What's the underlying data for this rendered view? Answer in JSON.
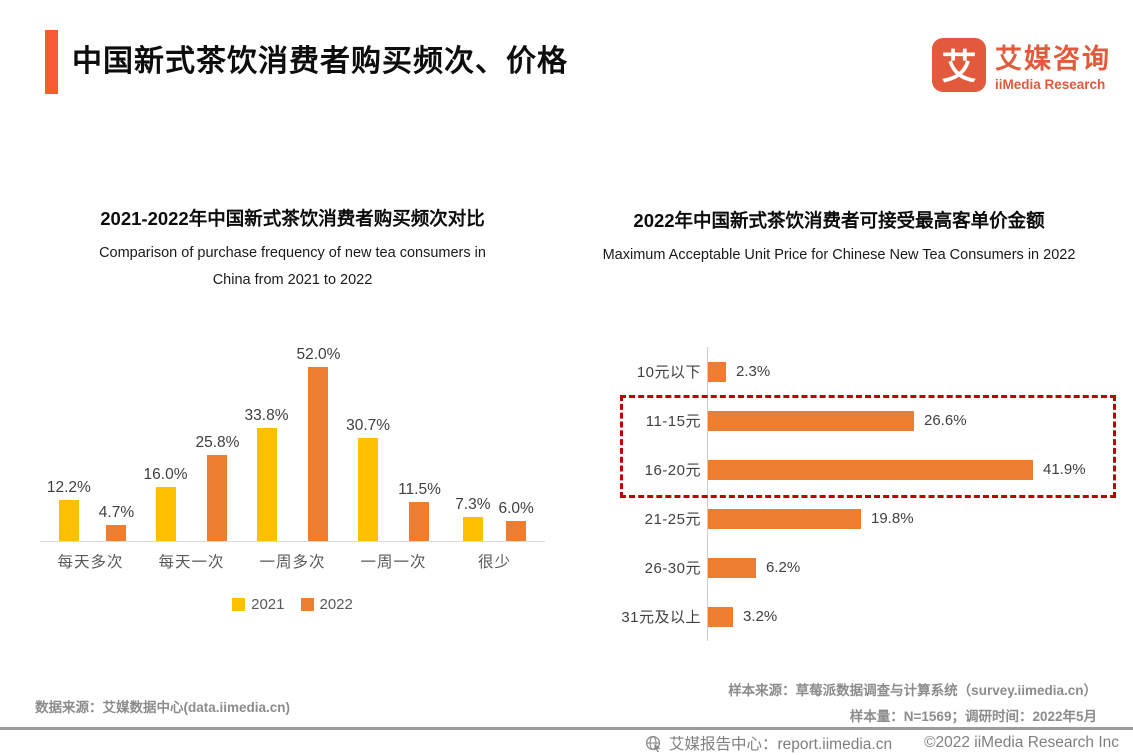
{
  "header": {
    "title": "中国新式茶饮消费者购买频次、价格",
    "logo": {
      "glyph": "艾",
      "name_cn": "艾媒咨询",
      "name_en": "iiMedia Research"
    }
  },
  "colors": {
    "accent": "#FB5B33",
    "logo": "#E2593B",
    "bar_2021": "#FFC000",
    "bar_2022": "#ED7D31",
    "highlight_box": "#C00000"
  },
  "left_chart": {
    "title_cn": "2021-2022年中国新式茶饮消费者购买频次对比",
    "title_en_line1": "Comparison of purchase frequency of new tea consumers in",
    "title_en_line2": "China from 2021 to 2022"
  },
  "right_chart": {
    "title_cn": "2022年中国新式茶饮消费者可接受最高客单价金额",
    "title_en": "Maximum Acceptable Unit Price for Chinese New Tea Consumers in 2022"
  },
  "chart_data": [
    {
      "type": "bar",
      "title": "2021-2022年中国新式茶饮消费者购买频次对比",
      "subtitle": "Comparison of purchase frequency of new tea consumers in China from 2021 to 2022",
      "categories": [
        "每天多次",
        "每天一次",
        "一周多次",
        "一周一次",
        "很少"
      ],
      "series": [
        {
          "name": "2021",
          "color": "#FFC000",
          "values": [
            12.2,
            16.0,
            33.8,
            30.7,
            7.3
          ]
        },
        {
          "name": "2022",
          "color": "#ED7D31",
          "values": [
            4.7,
            25.8,
            52.0,
            11.5,
            6.0
          ]
        }
      ],
      "value_suffix": "%",
      "ylim": [
        0,
        60
      ],
      "grid": false,
      "legend_position": "bottom",
      "data_labels": true
    },
    {
      "type": "bar",
      "orientation": "horizontal",
      "title": "2022年中国新式茶饮消费者可接受最高客单价金额",
      "subtitle": "Maximum Acceptable Unit Price for Chinese New Tea Consumers in 2022",
      "categories": [
        "10元以下",
        "11-15元",
        "16-20元",
        "21-25元",
        "26-30元",
        "31元及以上"
      ],
      "values": [
        2.3,
        26.6,
        41.9,
        19.8,
        6.2,
        3.2
      ],
      "color": "#ED7D31",
      "value_suffix": "%",
      "xlim": [
        0,
        50
      ],
      "grid": false,
      "data_labels": true,
      "highlighted_categories": [
        "11-15元",
        "16-20元"
      ]
    }
  ],
  "footer": {
    "data_source": "数据来源：艾媒数据中心(data.iimedia.cn)",
    "sample_source": "样本来源：草莓派数据调查与计算系统（survey.iimedia.cn）",
    "sample_info": "样本量：N=1569；调研时间：2022年5月",
    "report_center": "艾媒报告中心：report.iimedia.cn",
    "copyright": "©2022  iiMedia Research Inc"
  }
}
